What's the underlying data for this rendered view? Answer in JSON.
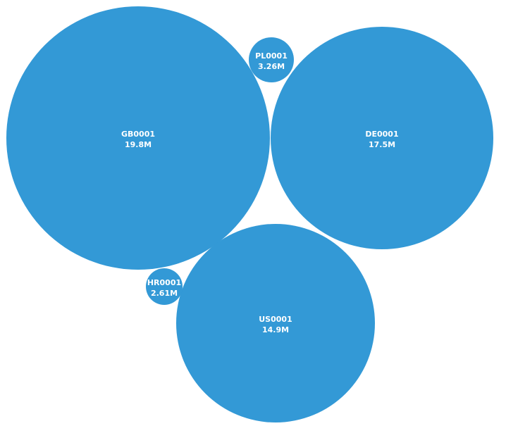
{
  "chart_data": {
    "type": "bubble",
    "title": "",
    "color": "#3399d6",
    "label_color": "#ffffff",
    "items": [
      {
        "id": "GB0001",
        "value_label": "19.8M",
        "value": 19.8
      },
      {
        "id": "DE0001",
        "value_label": "17.5M",
        "value": 17.5
      },
      {
        "id": "US0001",
        "value_label": "14.9M",
        "value": 14.9
      },
      {
        "id": "PL0001",
        "value_label": "3.26M",
        "value": 3.26
      },
      {
        "id": "HR0001",
        "value_label": "2.61M",
        "value": 2.61
      }
    ]
  }
}
